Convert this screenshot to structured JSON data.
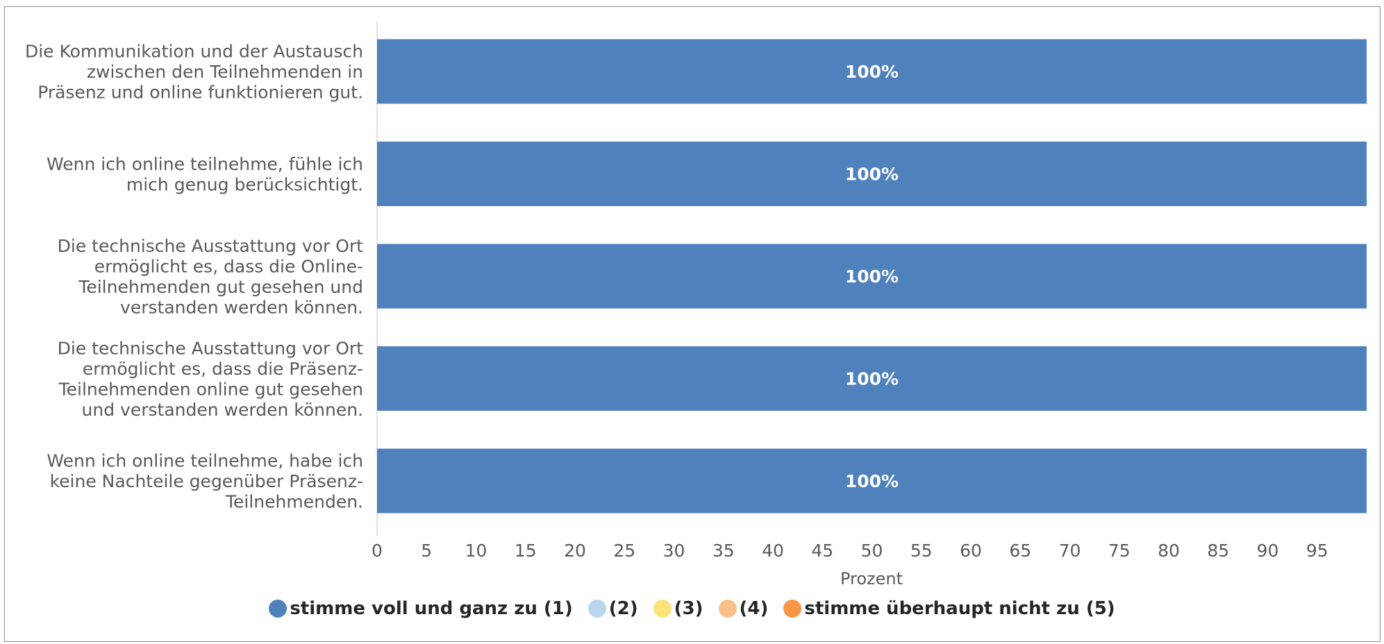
{
  "chart_data": {
    "type": "bar",
    "orientation": "horizontal",
    "stacked": true,
    "categories": [
      [
        "Die Kommunikation und der Austausch",
        "zwischen den Teilnehmenden in",
        "Präsenz und online funktionieren gut."
      ],
      [
        "Wenn ich online teilnehme, fühle ich",
        "mich genug berücksichtigt."
      ],
      [
        "Die technische Ausstattung vor Ort",
        "ermöglicht es, dass die Online-",
        "Teilnehmenden gut gesehen und",
        "verstanden werden können."
      ],
      [
        "Die technische Ausstattung vor Ort",
        "ermöglicht es, dass die Präsenz-",
        "Teilnehmenden online gut gesehen",
        "und verstanden werden können."
      ],
      [
        "Wenn ich online teilnehme, habe ich",
        "keine Nachteile gegenüber Präsenz-",
        "Teilnehmenden."
      ]
    ],
    "series": [
      {
        "name": "stimme voll und ganz zu (1)",
        "color": "#4f81bd",
        "values": [
          100,
          100,
          100,
          100,
          100
        ]
      },
      {
        "name": "(2)",
        "color": "#b9d7ec",
        "values": [
          0,
          0,
          0,
          0,
          0
        ]
      },
      {
        "name": "(3)",
        "color": "#fce27c",
        "values": [
          0,
          0,
          0,
          0,
          0
        ]
      },
      {
        "name": "(4)",
        "color": "#fbbf8c",
        "values": [
          0,
          0,
          0,
          0,
          0
        ]
      },
      {
        "name": "stimme überhaupt nicht zu (5)",
        "color": "#f79646",
        "values": [
          0,
          0,
          0,
          0,
          0
        ]
      }
    ],
    "data_labels": [
      "100%",
      "100%",
      "100%",
      "100%",
      "100%"
    ],
    "xlabel": "Prozent",
    "xlim": [
      0,
      100
    ],
    "xticks": [
      0,
      5,
      10,
      15,
      20,
      25,
      30,
      35,
      40,
      45,
      50,
      55,
      60,
      65,
      70,
      75,
      80,
      85,
      90,
      95
    ],
    "grid": false,
    "legend_position": "bottom"
  }
}
